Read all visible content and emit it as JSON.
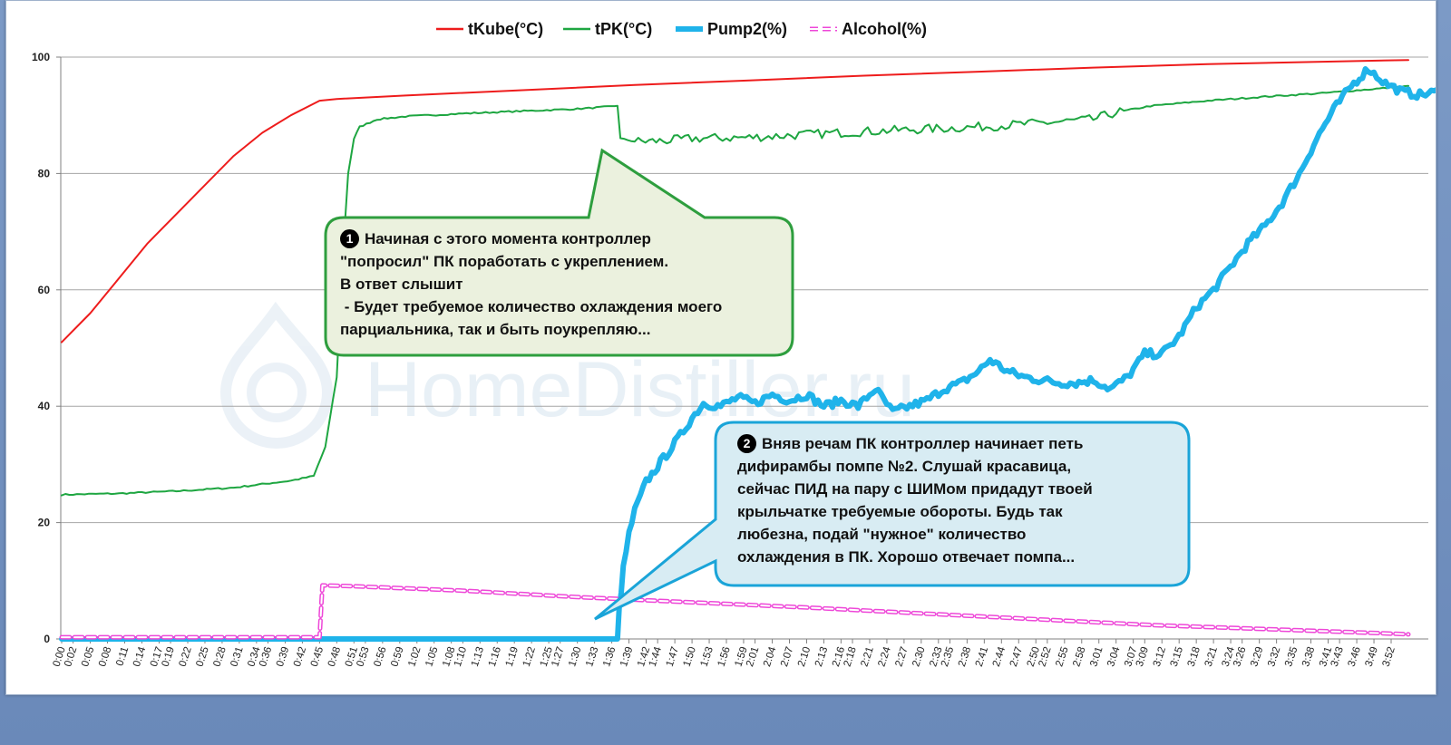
{
  "watermark": "HomeDistiller.ru",
  "callouts": [
    {
      "number": "1",
      "lines": [
        "Начиная с этого момента контроллер",
        "\"попросил\"  ПК поработать с укреплением.",
        "В ответ слышит",
        " - Будет требуемое количество охлаждения моего",
        "парциальника, так и быть поукрепляю..."
      ],
      "fill": "#ebf1de",
      "stroke": "#2e9e3e"
    },
    {
      "number": "2",
      "lines": [
        "Вняв речам ПК контроллер начинает петь",
        "дифирамбы помпе №2. Слушай красавица,",
        "сейчас ПИД на пару с ШИМом придадут твоей",
        "крыльчатке требуемые обороты. Будь так",
        "любезна, подай \"нужное\" количество",
        "охлаждения в ПК. Хорошо отвечает помпа..."
      ],
      "fill": "#d8ecf3",
      "stroke": "#1aa4d8"
    }
  ],
  "chart_data": {
    "type": "line",
    "legend_position": "top-center",
    "grid": true,
    "ylim": [
      0,
      100
    ],
    "y_ticks": [
      "0",
      "20",
      "40",
      "60",
      "80",
      "100"
    ],
    "x_range_minutes": [
      0,
      235
    ],
    "x_ticks": [
      "0:00",
      "0:02",
      "0:05",
      "0:08",
      "0:11",
      "0:14",
      "0:17",
      "0:19",
      "0:22",
      "0:25",
      "0:28",
      "0:31",
      "0:34",
      "0:36",
      "0:39",
      "0:42",
      "0:45",
      "0:48",
      "0:51",
      "0:53",
      "0:56",
      "0:59",
      "1:02",
      "1:05",
      "1:08",
      "1:10",
      "1:13",
      "1:16",
      "1:19",
      "1:22",
      "1:25",
      "1:27",
      "1:30",
      "1:33",
      "1:36",
      "1:39",
      "1:42",
      "1:44",
      "1:47",
      "1:50",
      "1:53",
      "1:56",
      "1:59",
      "2:01",
      "2:04",
      "2:07",
      "2:10",
      "2:13",
      "2:16",
      "2:18",
      "2:21",
      "2:24",
      "2:27",
      "2:30",
      "2:33",
      "2:35",
      "2:38",
      "2:41",
      "2:44",
      "2:47",
      "2:50",
      "2:52",
      "2:55",
      "2:58",
      "3:01",
      "3:04",
      "3:07",
      "3:09",
      "3:12",
      "3:15",
      "3:18",
      "3:21",
      "3:24",
      "3:26",
      "3:29",
      "3:32",
      "3:35",
      "3:38",
      "3:41",
      "3:43",
      "3:46",
      "3:49",
      "3:52"
    ],
    "series": [
      {
        "name": "tKube(°C)",
        "color": "#ee1c1c",
        "style": "solid",
        "points": [
          [
            0,
            51
          ],
          [
            5,
            56
          ],
          [
            10,
            62
          ],
          [
            15,
            68
          ],
          [
            20,
            73
          ],
          [
            25,
            78
          ],
          [
            30,
            83
          ],
          [
            35,
            87
          ],
          [
            40,
            90
          ],
          [
            45,
            92.5
          ],
          [
            48,
            92.8
          ],
          [
            60,
            93.4
          ],
          [
            80,
            94.3
          ],
          [
            100,
            95.2
          ],
          [
            120,
            96
          ],
          [
            140,
            96.8
          ],
          [
            160,
            97.5
          ],
          [
            180,
            98.2
          ],
          [
            200,
            98.8
          ],
          [
            220,
            99.2
          ],
          [
            235,
            99.5
          ]
        ]
      },
      {
        "name": "tPK(°C)",
        "color": "#1ea641",
        "style": "solid",
        "points": [
          [
            0,
            24.8
          ],
          [
            10,
            25
          ],
          [
            20,
            25.4
          ],
          [
            30,
            26
          ],
          [
            35,
            26.6
          ],
          [
            40,
            27.2
          ],
          [
            44,
            28
          ],
          [
            46,
            33
          ],
          [
            48,
            45
          ],
          [
            49,
            65
          ],
          [
            50,
            80
          ],
          [
            51,
            86
          ],
          [
            52,
            88
          ],
          [
            55,
            89.3
          ],
          [
            60,
            89.8
          ],
          [
            70,
            90.3
          ],
          [
            80,
            90.7
          ],
          [
            90,
            91.1
          ],
          [
            96,
            91.5
          ],
          [
            97,
            91.7
          ],
          [
            97.5,
            86
          ],
          [
            100,
            85.5
          ],
          [
            105,
            85.6
          ],
          [
            110,
            86
          ],
          [
            120,
            86.2
          ],
          [
            130,
            86.7
          ],
          [
            140,
            87.2
          ],
          [
            150,
            87.6
          ],
          [
            160,
            88
          ],
          [
            170,
            88.6
          ],
          [
            180,
            89.3
          ],
          [
            184,
            90.5
          ],
          [
            190,
            91.6
          ],
          [
            200,
            92.5
          ],
          [
            210,
            93.2
          ],
          [
            220,
            93.8
          ],
          [
            230,
            94.6
          ],
          [
            235,
            95
          ]
        ]
      },
      {
        "name": "Pump2(%)",
        "color": "#1fb3ea",
        "style": "thick",
        "points": [
          [
            0,
            0
          ],
          [
            97,
            0
          ],
          [
            97.3,
            5
          ],
          [
            98,
            12
          ],
          [
            99,
            18
          ],
          [
            100,
            22
          ],
          [
            102,
            27
          ],
          [
            105,
            31
          ],
          [
            108,
            35
          ],
          [
            110,
            38
          ],
          [
            112,
            40.5
          ],
          [
            115,
            40
          ],
          [
            118,
            41.5
          ],
          [
            121,
            40.5
          ],
          [
            124,
            42
          ],
          [
            127,
            41
          ],
          [
            130,
            42
          ],
          [
            133,
            40
          ],
          [
            136,
            41
          ],
          [
            139,
            40
          ],
          [
            142,
            43
          ],
          [
            145,
            39
          ],
          [
            148,
            40
          ],
          [
            151,
            41
          ],
          [
            154,
            43
          ],
          [
            157,
            44
          ],
          [
            160,
            46
          ],
          [
            162,
            48
          ],
          [
            165,
            46
          ],
          [
            168,
            45
          ],
          [
            171,
            44.5
          ],
          [
            174,
            44
          ],
          [
            177,
            44
          ],
          [
            180,
            44.5
          ],
          [
            183,
            43
          ],
          [
            186,
            45
          ],
          [
            189,
            49
          ],
          [
            192,
            49
          ],
          [
            195,
            52
          ],
          [
            198,
            57
          ],
          [
            201,
            60
          ],
          [
            204,
            64
          ],
          [
            207,
            68
          ],
          [
            210,
            71
          ],
          [
            213,
            75
          ],
          [
            216,
            80
          ],
          [
            219,
            86
          ],
          [
            222,
            91
          ],
          [
            225,
            95
          ],
          [
            228,
            98
          ],
          [
            231,
            95.5
          ],
          [
            234,
            94
          ],
          [
            237,
            93.5
          ],
          [
            240,
            94
          ],
          [
            243,
            92.5
          ],
          [
            246,
            91
          ],
          [
            248,
            90
          ]
        ]
      },
      {
        "name": "Alcohol(%)",
        "color": "#ee48d8",
        "style": "dashed",
        "points": [
          [
            0,
            0.3
          ],
          [
            45,
            0.3
          ],
          [
            45.5,
            9.2
          ],
          [
            50,
            9.1
          ],
          [
            70,
            8.3
          ],
          [
            90,
            7.2
          ],
          [
            110,
            6.3
          ],
          [
            130,
            5.4
          ],
          [
            150,
            4.4
          ],
          [
            170,
            3.4
          ],
          [
            190,
            2.4
          ],
          [
            210,
            1.7
          ],
          [
            230,
            1.0
          ],
          [
            235,
            0.8
          ]
        ]
      }
    ]
  }
}
